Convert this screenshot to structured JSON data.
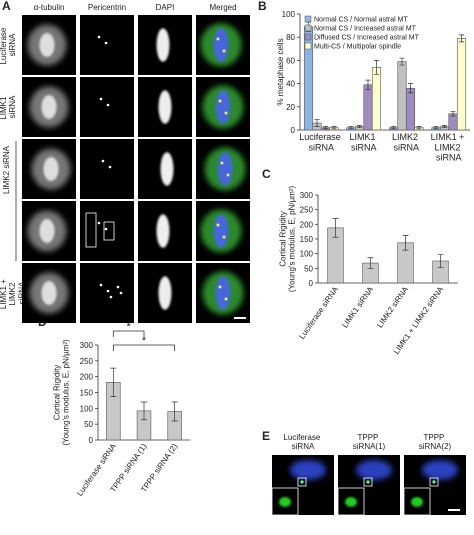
{
  "panel_labels": [
    "A",
    "B",
    "C",
    "D",
    "E"
  ],
  "panel_a": {
    "columns": [
      "α-tubulin",
      "Pericentrin",
      "DAPI",
      "Merged"
    ],
    "rows": [
      "Luciferase siRNA",
      "LIMK1 siRNA",
      "LIMK2 siRNA",
      "LIMK1 + LIMK2 siRNA"
    ]
  },
  "panel_e": {
    "columns": [
      "Luciferase siRNA",
      "TPPP siRNA(1)",
      "TPPP siRNA(2)"
    ]
  },
  "chart_data": [
    {
      "type": "bar",
      "y_label": [
        "% metaphase cells"
      ],
      "categories": [
        "Luciferase siRNA",
        "LIMK1 siRNA",
        "LIMK2 siRNA",
        "LIMK1 + LIMK2 siRNA"
      ],
      "series": [
        {
          "name": "Normal CS / Normal astral MT",
          "color": "#8db4e2",
          "values": [
            89,
            2,
            2,
            2
          ],
          "errors": [
            4,
            1,
            1,
            1
          ]
        },
        {
          "name": "Normal CS / Increased astral MT",
          "color": "#c0c0c0",
          "values": [
            6,
            3,
            59,
            3
          ],
          "errors": [
            3,
            1,
            3,
            1
          ]
        },
        {
          "name": "Diffused CS / Increased astral MT",
          "color": "#9e8cc0",
          "values": [
            2,
            39,
            36,
            14
          ],
          "errors": [
            1,
            4,
            4,
            2
          ]
        },
        {
          "name": "Multi-CS / Multipolar spindle",
          "color": "#fdfccc",
          "values": [
            2,
            54,
            2,
            79
          ],
          "errors": [
            1,
            6,
            1,
            3
          ]
        }
      ],
      "ylim": [
        0,
        100
      ],
      "yticks": [
        0,
        20,
        40,
        60,
        80,
        100
      ],
      "legend": "upper-left"
    },
    {
      "type": "bar",
      "y_label": [
        "Cortical Rigidity",
        "(Young's modulus, E, pN/µm²)"
      ],
      "categories": [
        "Luciferase siRNA",
        "LIMK1 siRNA",
        "LIMK2 siRNA",
        "LIMK1 + LIMK2 siRNA"
      ],
      "values": [
        188,
        68,
        137,
        75
      ],
      "errors": [
        32,
        18,
        25,
        22
      ],
      "color": "#c8c8c8",
      "ylim": [
        0,
        300
      ],
      "yticks": [
        0,
        50,
        100,
        150,
        200,
        250,
        300
      ]
    },
    {
      "type": "bar",
      "y_label": [
        "Cortical Rigidity",
        "(Young's modulus, E, pN/µm²)"
      ],
      "categories": [
        "Luciferase siRNA",
        "TPPP siRNA (1)",
        "TPPP siRNA (2)"
      ],
      "values": [
        182,
        92,
        90
      ],
      "errors": [
        45,
        28,
        30
      ],
      "color": "#c8c8c8",
      "ylim": [
        0,
        300
      ],
      "yticks": [
        0,
        50,
        100,
        150,
        200,
        250,
        300
      ],
      "annotations": [
        "*",
        "*"
      ]
    }
  ]
}
